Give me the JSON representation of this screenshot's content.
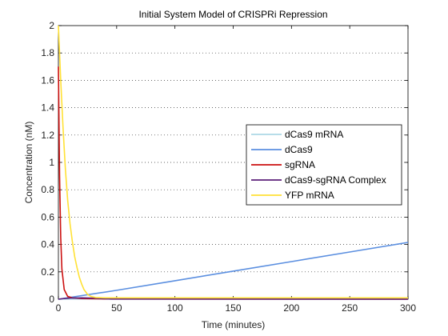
{
  "chart_data": {
    "type": "line",
    "title": "Initial System Model of CRISPRi Repression",
    "xlabel": "Time (minutes)",
    "ylabel": "Concentration (nM)",
    "xlim": [
      0,
      300
    ],
    "ylim": [
      0,
      2
    ],
    "x_ticks": [
      0,
      50,
      100,
      150,
      200,
      250,
      300
    ],
    "y_ticks": [
      0,
      0.2,
      0.4,
      0.6,
      0.8,
      1,
      1.2,
      1.4,
      1.6,
      1.8,
      2
    ],
    "grid": "horizontal dotted",
    "legend_position": "right",
    "series": [
      {
        "name": "dCas9 mRNA",
        "color": "#add8e6",
        "points": [
          [
            0,
            0
          ],
          [
            50,
            0.002
          ],
          [
            100,
            0.003
          ],
          [
            150,
            0.004
          ],
          [
            200,
            0.004
          ],
          [
            250,
            0.005
          ],
          [
            300,
            0.005
          ]
        ]
      },
      {
        "name": "dCas9",
        "color": "#5b8fe0",
        "points": [
          [
            0,
            0
          ],
          [
            50,
            0.065
          ],
          [
            100,
            0.135
          ],
          [
            150,
            0.205
          ],
          [
            200,
            0.275
          ],
          [
            250,
            0.345
          ],
          [
            300,
            0.415
          ]
        ]
      },
      {
        "name": "sgRNA",
        "color": "#cc1111",
        "points": [
          [
            0,
            1.7
          ],
          [
            1,
            0.9
          ],
          [
            2,
            0.45
          ],
          [
            3,
            0.22
          ],
          [
            5,
            0.07
          ],
          [
            8,
            0.02
          ],
          [
            12,
            0.01
          ],
          [
            20,
            0.005
          ],
          [
            40,
            0.002
          ],
          [
            300,
            0.0
          ]
        ]
      },
      {
        "name": "dCas9-sgRNA Complex",
        "color": "#5c1f7a",
        "points": [
          [
            0,
            0
          ],
          [
            5,
            0.005
          ],
          [
            10,
            0.008
          ],
          [
            20,
            0.01
          ],
          [
            30,
            0.008
          ],
          [
            38,
            0.004
          ],
          [
            45,
            0.001
          ],
          [
            300,
            0.0
          ]
        ]
      },
      {
        "name": "YFP mRNA",
        "color": "#ffe135",
        "points": [
          [
            0,
            2.0
          ],
          [
            2,
            1.6
          ],
          [
            4,
            1.25
          ],
          [
            6,
            0.95
          ],
          [
            8,
            0.72
          ],
          [
            10,
            0.55
          ],
          [
            12,
            0.42
          ],
          [
            14,
            0.31
          ],
          [
            16,
            0.23
          ],
          [
            18,
            0.16
          ],
          [
            20,
            0.11
          ],
          [
            22,
            0.07
          ],
          [
            25,
            0.035
          ],
          [
            28,
            0.02
          ],
          [
            32,
            0.012
          ],
          [
            40,
            0.01
          ],
          [
            300,
            0.01
          ]
        ]
      }
    ]
  }
}
